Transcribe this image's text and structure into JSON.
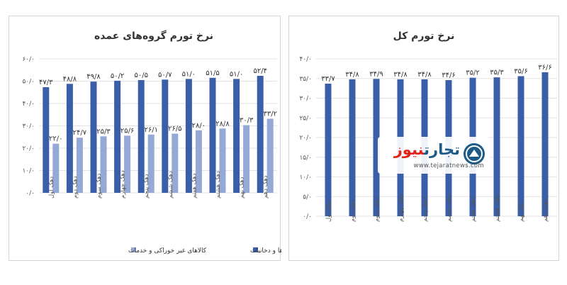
{
  "chart_data": [
    {
      "type": "bar",
      "title": "نرخ تورم گروه‌های عمده",
      "categories": [
        "دهک اول",
        "دهک دوم",
        "دهک سوم",
        "دهک چهارم",
        "دهک پنجم",
        "دهک ششم",
        "دهک هفتم",
        "دهک هشتم",
        "دهک نهم",
        "دهک دهم"
      ],
      "series": [
        {
          "name": "خوراکی ها، آشامیدنی ها و دخانیات",
          "color": "#3a5ea8",
          "values": [
            47.3,
            48.8,
            49.8,
            50.2,
            50.5,
            50.7,
            51.0,
            51.5,
            51.0,
            52.4
          ],
          "labels": [
            "۴۷/۳",
            "۴۸/۸",
            "۴۹/۸",
            "۵۰/۲",
            "۵۰/۵",
            "۵۰/۷",
            "۵۱/۰",
            "۵۱/۵",
            "۵۱/۰",
            "۵۲/۴"
          ]
        },
        {
          "name": "کالاهای غیر خوراکی و خدمات",
          "color": "#95a9d6",
          "values": [
            22.0,
            24.7,
            25.3,
            25.6,
            26.1,
            26.5,
            28.0,
            28.8,
            30.3,
            33.2
          ],
          "labels": [
            "۲۲/۰",
            "۲۴/۷",
            "۲۵/۳",
            "۲۵/۶",
            "۲۶/۱",
            "۲۶/۵",
            "۲۸/۰",
            "۲۸/۸",
            "۳۰/۳",
            "۳۳/۲"
          ]
        }
      ],
      "ylim": [
        0,
        60
      ],
      "yticks": [
        0,
        10,
        20,
        30,
        40,
        50,
        60
      ],
      "ytick_labels": [
        "۰/۰",
        "۱۰/۰",
        "۲۰/۰",
        "۳۰/۰",
        "۴۰/۰",
        "۵۰/۰",
        "۶۰/۰"
      ],
      "legend_position": "bottom"
    },
    {
      "type": "bar",
      "title": "نرخ تورم کل",
      "categories": [
        "دهک اول",
        "دهک دوم",
        "دهک سوم",
        "دهک چهارم",
        "دهک پنجم",
        "دهک ششم",
        "دهک هفتم",
        "دهک هشتم",
        "دهک نهم",
        "دهک دهم"
      ],
      "series": [
        {
          "color": "#3a5ea8",
          "values": [
            33.7,
            34.8,
            34.9,
            34.8,
            34.8,
            34.6,
            35.2,
            35.3,
            35.6,
            36.6
          ],
          "labels": [
            "۳۳/۷",
            "۳۴/۸",
            "۳۴/۹",
            "۳۴/۸",
            "۳۴/۸",
            "۳۴/۶",
            "۳۵/۲",
            "۳۵/۳",
            "۳۵/۶",
            "۳۶/۶"
          ]
        }
      ],
      "ylim": [
        0,
        40
      ],
      "yticks": [
        0,
        5,
        10,
        15,
        20,
        25,
        30,
        35,
        40
      ],
      "ytick_labels": [
        "۰/۰",
        "۵/۰",
        "۱۰/۰",
        "۱۵/۰",
        "۲۰/۰",
        "۲۵/۰",
        "۳۰/۰",
        "۳۵/۰",
        "۴۰/۰"
      ]
    }
  ],
  "watermark": {
    "logo_part1": "تجارت",
    "logo_part2": "نیوز",
    "url": "www.tejaratnews.com",
    "icon": "tejaratnews-logo-icon"
  },
  "colors": {
    "bar_dark": "#3a5ea8",
    "bar_light": "#95a9d6",
    "grid": "#e3e3e3"
  }
}
